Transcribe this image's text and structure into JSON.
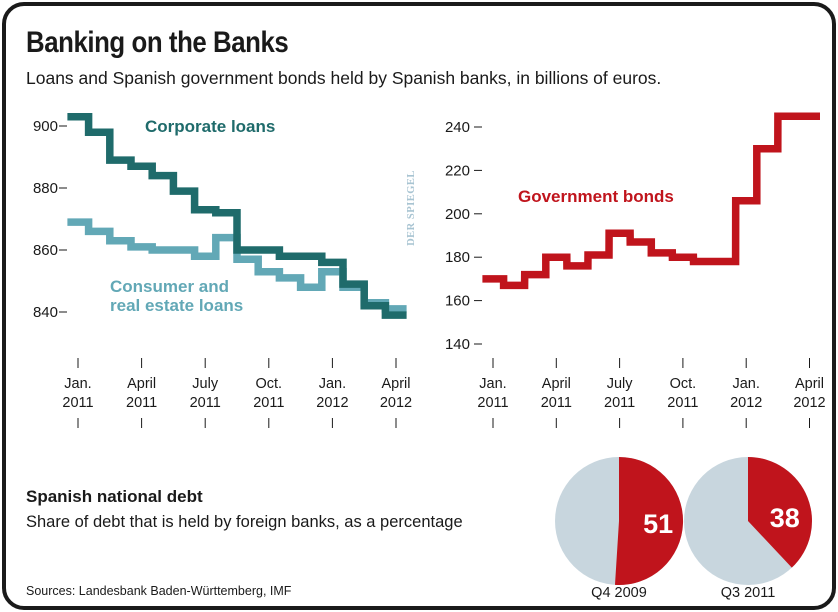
{
  "header": {
    "title": "Banking on the Banks",
    "subtitle": "Loans and Spanish government bonds held by Spanish banks, in billions of euros."
  },
  "watermark": "DER SPIEGEL",
  "debt": {
    "title": "Spanish national debt",
    "subtitle": "Share of debt that is held by foreign banks, as a percentage"
  },
  "source": "Sources: Landesbank Baden-Württemberg, IMF",
  "colors": {
    "corporate": "#1f6b6b",
    "consumer": "#62a8b6",
    "government": "#c0141c",
    "pie_rest": "#c8d6de"
  },
  "chart_data": [
    {
      "type": "line",
      "x_ticks": [
        "Jan.",
        "April",
        "July",
        "Oct.",
        "Jan.",
        "April"
      ],
      "x_ticks_year": [
        "2011",
        "2011",
        "2011",
        "2011",
        "2012",
        "2012"
      ],
      "ylim": [
        830,
        905
      ],
      "y_ticks": [
        900,
        880,
        860,
        840
      ],
      "series": [
        {
          "name": "Corporate loans",
          "x": [
            "2011-01",
            "2011-02",
            "2011-03",
            "2011-04",
            "2011-05",
            "2011-06",
            "2011-07",
            "2011-08",
            "2011-09",
            "2011-10",
            "2011-11",
            "2011-12",
            "2012-01",
            "2012-02",
            "2012-03",
            "2012-04"
          ],
          "values": [
            903,
            898,
            889,
            887,
            884,
            879,
            873,
            872,
            860,
            860,
            858,
            858,
            856,
            849,
            842,
            839
          ]
        },
        {
          "name": "Consumer and real estate loans",
          "x": [
            "2011-01",
            "2011-02",
            "2011-03",
            "2011-04",
            "2011-05",
            "2011-06",
            "2011-07",
            "2011-08",
            "2011-09",
            "2011-10",
            "2011-11",
            "2011-12",
            "2012-01",
            "2012-02",
            "2012-03",
            "2012-04"
          ],
          "values": [
            869,
            866,
            863,
            861,
            860,
            860,
            858,
            864,
            857,
            853,
            851,
            848,
            853,
            848,
            843,
            841
          ]
        }
      ]
    },
    {
      "type": "line",
      "x_ticks": [
        "Jan.",
        "April",
        "July",
        "Oct.",
        "Jan.",
        "April"
      ],
      "x_ticks_year": [
        "2011",
        "2011",
        "2011",
        "2011",
        "2012",
        "2012"
      ],
      "ylim": [
        135,
        250
      ],
      "y_ticks": [
        240,
        220,
        200,
        180,
        160,
        140
      ],
      "series": [
        {
          "name": "Government bonds",
          "x": [
            "2011-01",
            "2011-02",
            "2011-03",
            "2011-04",
            "2011-05",
            "2011-06",
            "2011-07",
            "2011-08",
            "2011-09",
            "2011-10",
            "2011-11",
            "2011-12",
            "2012-01",
            "2012-02",
            "2012-03",
            "2012-04"
          ],
          "values": [
            170,
            167,
            172,
            180,
            176,
            181,
            191,
            187,
            182,
            180,
            178,
            178,
            206,
            230,
            245,
            245
          ]
        }
      ]
    },
    {
      "type": "pie",
      "label": "Q4 2009",
      "values": [
        51,
        49
      ],
      "display_value": "51"
    },
    {
      "type": "pie",
      "label": "Q3 2011",
      "values": [
        38,
        62
      ],
      "display_value": "38"
    }
  ]
}
